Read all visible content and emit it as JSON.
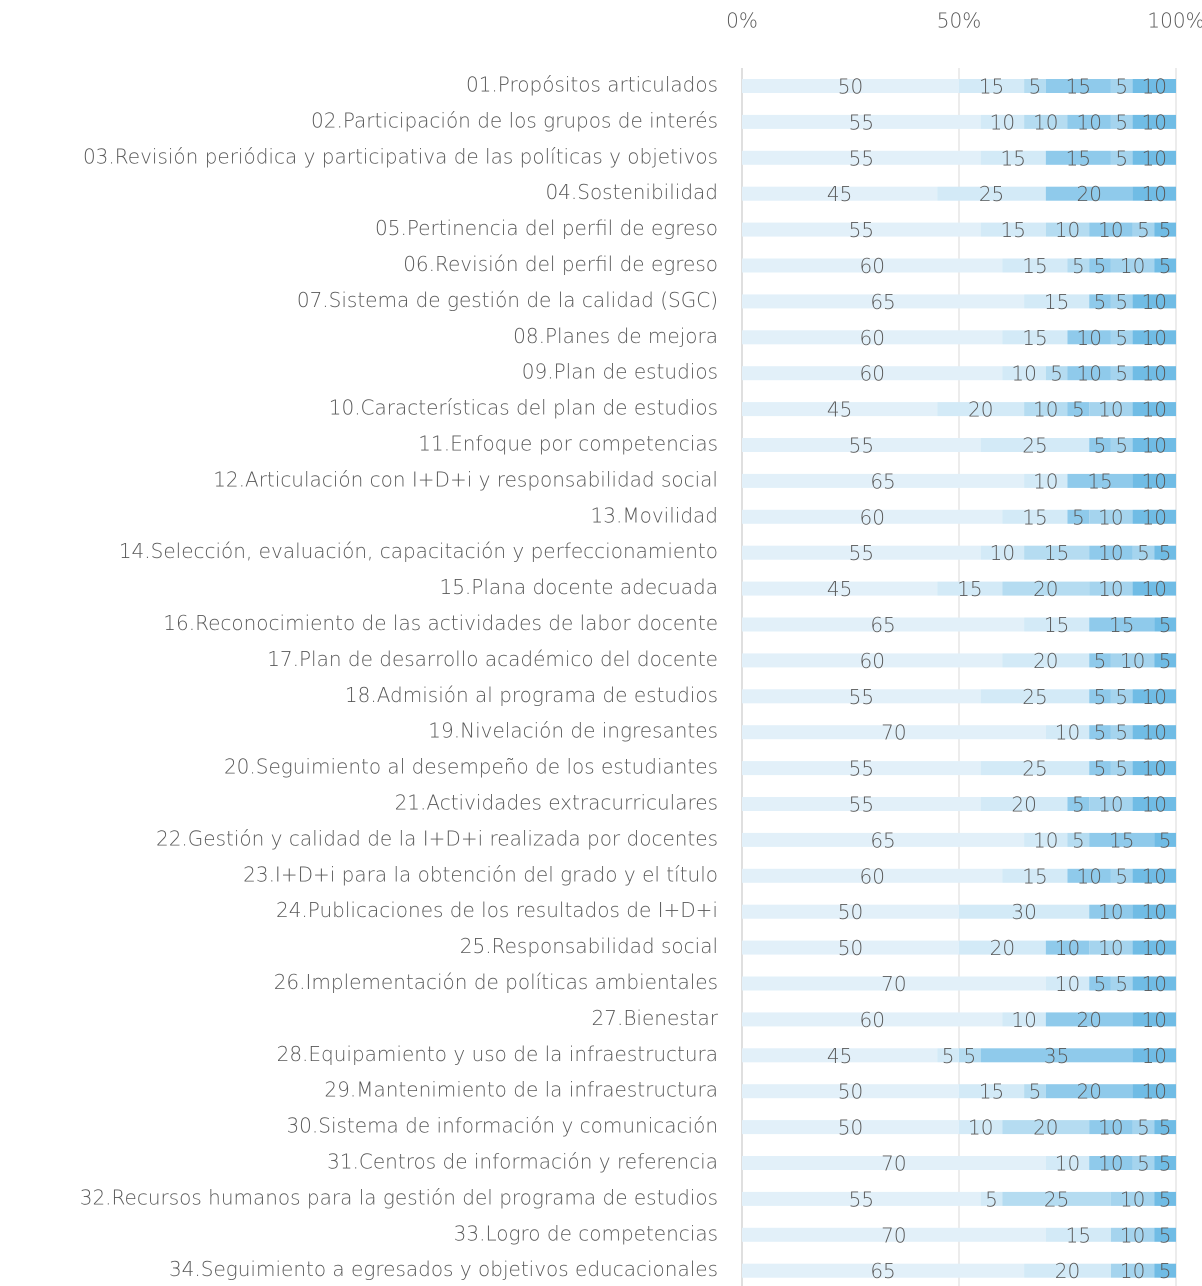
{
  "chart_data": {
    "type": "stacked-bar-horizontal",
    "categories": [
      "01.Propósitos articulados",
      "02.Participación de los grupos de interés",
      "03.Revisión periódica y participativa de las políticas y objetivos",
      "04.Sostenibilidad",
      "05.Pertinencia del perfil de egreso",
      "06.Revisión del perfil de egreso",
      "07.Sistema de gestión de la calidad (SGC)",
      "08.Planes de mejora",
      "09.Plan de estudios",
      "10.Características del plan de estudios",
      "11.Enfoque por competencias",
      "12.Articulación con I+D+i y responsabilidad social",
      "13.Movilidad",
      "14.Selección, evaluación, capacitación y perfeccionamiento",
      "15.Plana docente adecuada",
      "16.Reconocimiento de las actividades de labor docente",
      "17.Plan de desarrollo académico del docente",
      "18.Admisión al programa de estudios",
      "19.Nivelación de ingresantes",
      "20.Seguimiento al desempeño de los estudiantes",
      "21.Actividades extracurriculares",
      "22.Gestión y calidad de la I+D+i realizada por docentes",
      "23.I+D+i para la obtención del grado y el título",
      "24.Publicaciones de los resultados de I+D+i",
      "25.Responsabilidad social",
      "26.Implementación de políticas ambientales",
      "27.Bienestar",
      "28.Equipamiento y uso de la infraestructura",
      "29.Mantenimiento de la infraestructura",
      "30.Sistema de información y comunicación",
      "31.Centros de información y referencia",
      "32.Recursos humanos para la gestión del programa de estudios",
      "33.Logro de competencias",
      "34.Seguimiento a egresados y objetivos educacionales"
    ],
    "series": [
      {
        "color": "#e2f0f9",
        "values": [
          50,
          55,
          55,
          45,
          55,
          60,
          65,
          60,
          60,
          45,
          55,
          65,
          60,
          55,
          45,
          65,
          60,
          55,
          70,
          55,
          55,
          65,
          60,
          50,
          50,
          70,
          60,
          45,
          50,
          50,
          70,
          55,
          70,
          65
        ]
      },
      {
        "color": "#d3eaf7",
        "values": [
          15,
          10,
          15,
          25,
          15,
          15,
          15,
          15,
          10,
          20,
          25,
          10,
          15,
          10,
          15,
          15,
          20,
          25,
          10,
          25,
          20,
          10,
          15,
          30,
          20,
          10,
          10,
          5,
          15,
          10,
          10,
          5,
          15,
          20
        ]
      },
      {
        "color": "#b5dcf1",
        "values": [
          5,
          10,
          0,
          0,
          10,
          5,
          0,
          0,
          5,
          10,
          0,
          0,
          0,
          15,
          20,
          0,
          0,
          0,
          0,
          0,
          0,
          5,
          0,
          0,
          0,
          0,
          0,
          5,
          5,
          20,
          0,
          25,
          0,
          0
        ]
      },
      {
        "color": "#8fcaeb",
        "values": [
          15,
          10,
          15,
          20,
          10,
          5,
          5,
          10,
          10,
          5,
          5,
          15,
          5,
          10,
          0,
          15,
          5,
          5,
          5,
          5,
          5,
          15,
          10,
          10,
          10,
          5,
          20,
          35,
          20,
          10,
          10,
          0,
          0,
          0
        ]
      },
      {
        "color": "#a5d4ee",
        "values": [
          5,
          5,
          5,
          0,
          5,
          10,
          5,
          5,
          5,
          10,
          5,
          0,
          10,
          5,
          10,
          0,
          10,
          5,
          5,
          5,
          10,
          0,
          5,
          0,
          10,
          5,
          0,
          0,
          0,
          5,
          5,
          10,
          10,
          10
        ]
      },
      {
        "color": "#70bce5",
        "values": [
          10,
          10,
          10,
          10,
          5,
          5,
          10,
          10,
          10,
          10,
          10,
          10,
          10,
          5,
          10,
          5,
          5,
          10,
          10,
          10,
          10,
          5,
          10,
          10,
          10,
          10,
          10,
          10,
          10,
          5,
          5,
          5,
          5,
          5
        ]
      }
    ],
    "xlim": [
      0,
      100
    ],
    "xticks": [
      {
        "value": 0,
        "label": "0%"
      },
      {
        "value": 50,
        "label": "50%"
      },
      {
        "value": 100,
        "label": "100%"
      }
    ],
    "grid": true
  }
}
